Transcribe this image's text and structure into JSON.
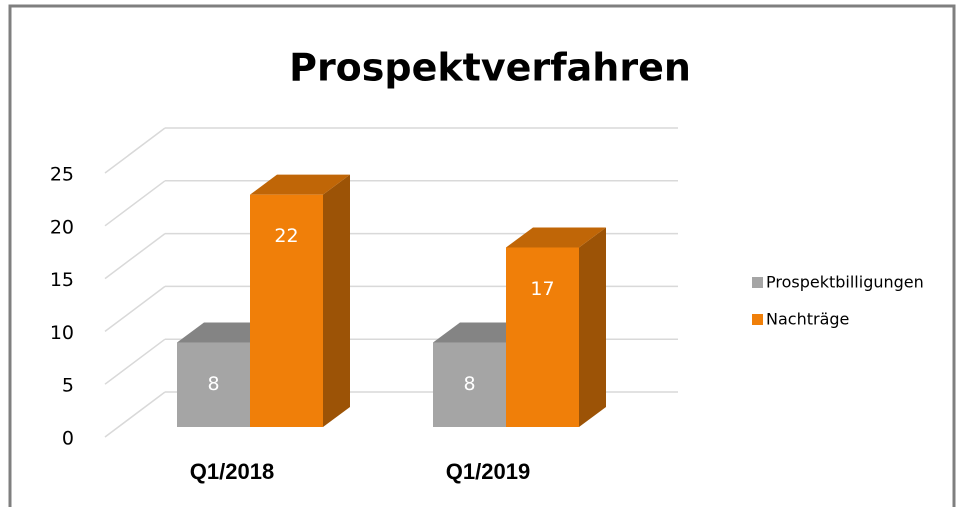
{
  "chart_data": {
    "type": "bar3d",
    "title": "Prospektverfahren",
    "categories": [
      "Q1/2018",
      "Q1/2019"
    ],
    "series": [
      {
        "name": "Prospektbilligungen",
        "color": "#a5a5a5",
        "values": [
          8,
          8
        ]
      },
      {
        "name": "Nachträge",
        "color": "#f07f09",
        "values": [
          22,
          17
        ]
      }
    ],
    "ylim": [
      0,
      25
    ],
    "yticks": [
      0,
      5,
      10,
      15,
      20,
      25
    ],
    "grid": true,
    "legend": "right"
  }
}
